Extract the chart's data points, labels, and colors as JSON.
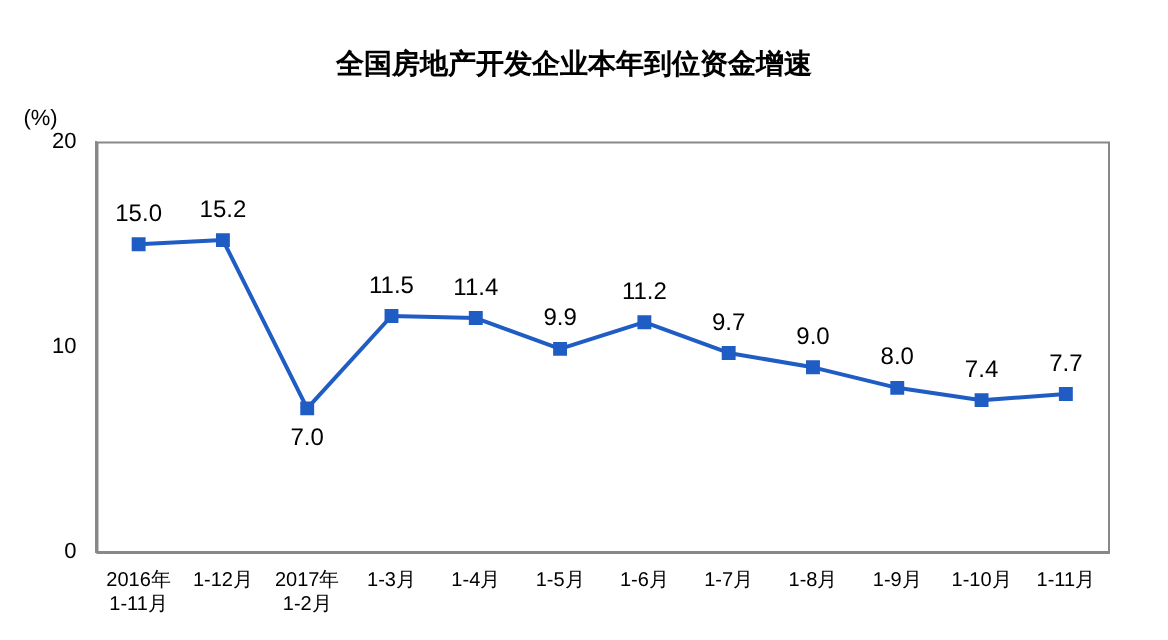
{
  "chart_data": {
    "type": "line",
    "title": "全国房地产开发企业本年到位资金增速",
    "ylabel": "(%)",
    "categories": [
      "2016年\n1-11月",
      "1-12月",
      "2017年\n1-2月",
      "1-3月",
      "1-4月",
      "1-5月",
      "1-6月",
      "1-7月",
      "1-8月",
      "1-9月",
      "1-10月",
      "1-11月"
    ],
    "values": [
      15.0,
      15.2,
      7.0,
      11.5,
      11.4,
      9.9,
      11.2,
      9.7,
      9.0,
      8.0,
      7.4,
      7.7
    ],
    "color": "#1f5cc4",
    "ylim": [
      0,
      20
    ],
    "yticks": [
      0,
      10,
      20
    ],
    "value_labels": [
      "15.0",
      "15.2",
      "7.0",
      "11.5",
      "11.4",
      "9.9",
      "11.2",
      "9.7",
      "9.0",
      "8.0",
      "7.4",
      "7.7"
    ],
    "grid": false,
    "legend": false,
    "marker": "square",
    "line_style": "solid"
  }
}
